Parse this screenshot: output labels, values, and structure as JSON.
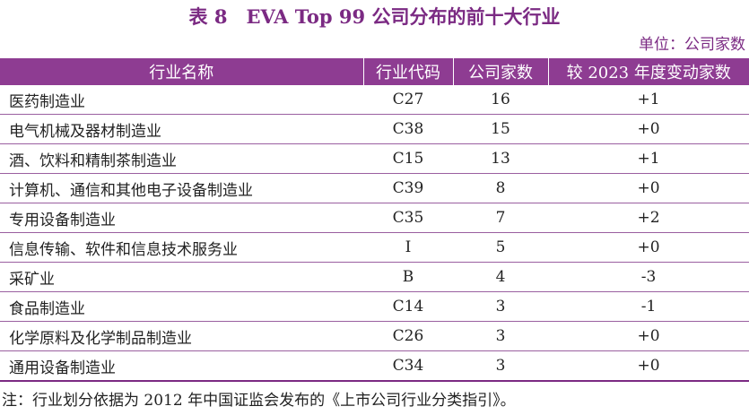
{
  "title": "表 8　EVA Top 99 公司分布的前十大行业",
  "unit": "单位：公司家数",
  "columns": [
    "行业名称",
    "行业代码",
    "公司家数",
    "较 2023 年度变动家数"
  ],
  "rows": [
    {
      "name": "医药制造业",
      "code": "C27",
      "count": "16",
      "change": "+1"
    },
    {
      "name": "电气机械及器材制造业",
      "code": "C38",
      "count": "15",
      "change": "+0"
    },
    {
      "name": "酒、饮料和精制茶制造业",
      "code": "C15",
      "count": "13",
      "change": "+1"
    },
    {
      "name": "计算机、通信和其他电子设备制造业",
      "code": "C39",
      "count": "8",
      "change": "+0"
    },
    {
      "name": "专用设备制造业",
      "code": "C35",
      "count": "7",
      "change": "+2"
    },
    {
      "name": "信息传输、软件和信息技术服务业",
      "code": "I",
      "count": "5",
      "change": "+0"
    },
    {
      "name": "采矿业",
      "code": "B",
      "count": "4",
      "change": "-3"
    },
    {
      "name": "食品制造业",
      "code": "C14",
      "count": "3",
      "change": "-1"
    },
    {
      "name": "化学原料及化学制品制造业",
      "code": "C26",
      "count": "3",
      "change": "+0"
    },
    {
      "name": "通用设备制造业",
      "code": "C34",
      "count": "3",
      "change": "+0"
    }
  ],
  "note": "注：行业划分依据为 2012 年中国证监会发布的《上市公司行业分类指引》。",
  "colors": {
    "accent": "#8e3c92",
    "title": "#7b2a83"
  }
}
